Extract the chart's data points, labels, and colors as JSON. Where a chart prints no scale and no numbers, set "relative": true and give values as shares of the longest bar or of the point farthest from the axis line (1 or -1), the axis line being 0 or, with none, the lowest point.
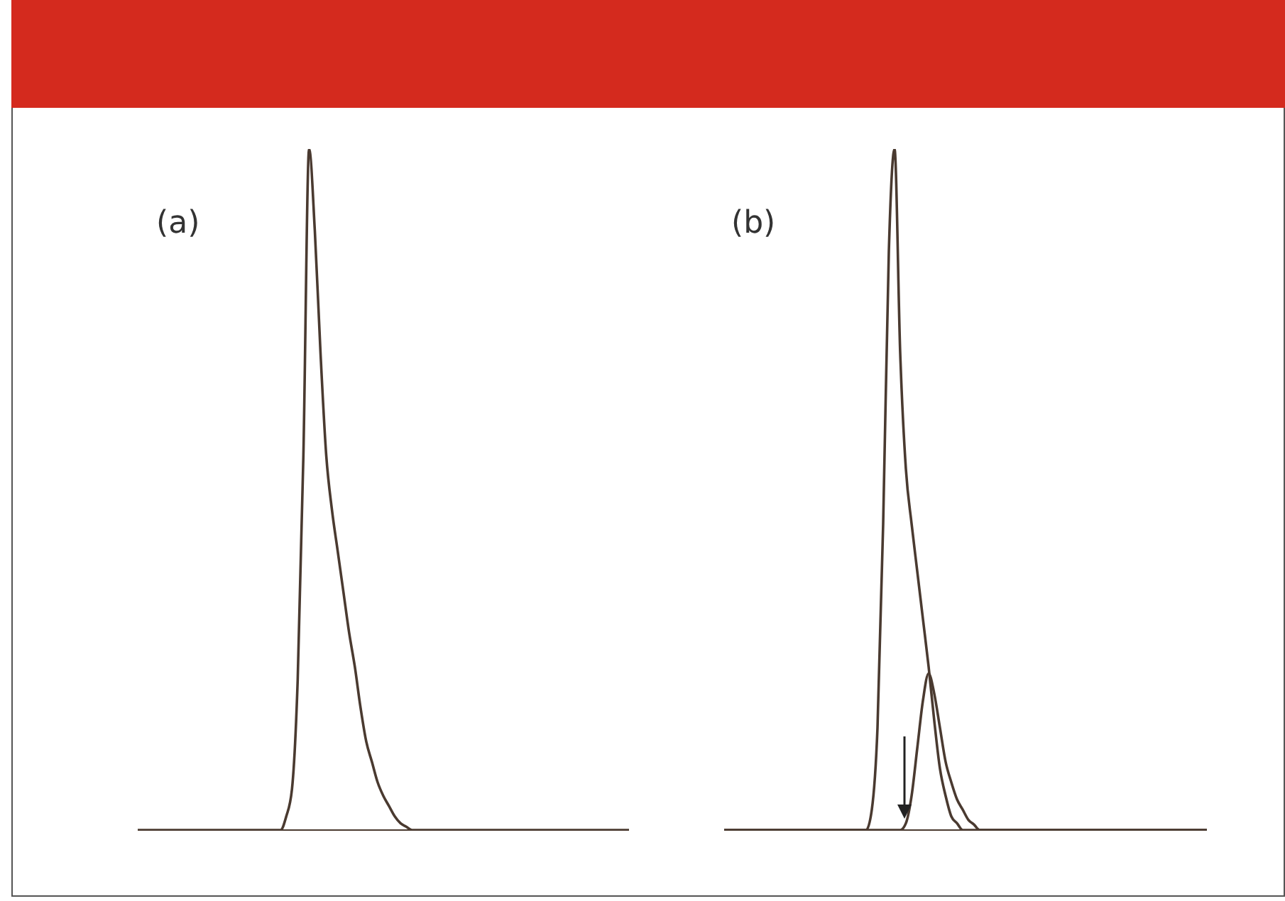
{
  "chart_data": [
    {
      "type": "line",
      "title": "(a)",
      "relative": true,
      "categories": [
        null,
        null,
        null,
        null,
        null,
        null,
        null,
        null,
        null,
        null,
        null,
        null,
        null,
        null,
        null,
        null,
        null,
        null,
        null,
        null,
        null,
        null,
        null,
        null,
        null,
        null,
        null,
        null,
        null,
        null,
        null,
        null,
        null,
        null,
        null,
        null,
        null,
        null,
        null,
        null,
        null,
        null,
        null,
        null,
        null,
        null,
        null,
        null,
        null,
        null,
        null,
        null,
        null,
        null,
        null,
        null,
        null,
        null,
        null,
        null,
        null,
        null,
        null,
        null,
        null,
        null,
        null,
        null,
        null,
        null,
        null,
        null,
        null,
        null,
        null,
        null,
        null,
        null,
        null,
        null,
        null,
        null,
        null,
        null,
        null,
        null,
        null
      ],
      "series": [
        {
          "color": "#4a3a30",
          "values": [
            0,
            0,
            0,
            0,
            0,
            0,
            0,
            0,
            0,
            0,
            0,
            0,
            0,
            0,
            0,
            0,
            0,
            0,
            0,
            0,
            0,
            0,
            0,
            0,
            0,
            0,
            0.02,
            0.06,
            0.22,
            0.55,
            1,
            0.88,
            0.7,
            0.55,
            0.47,
            0.41,
            0.35,
            0.29,
            0.24,
            0.18,
            0.13,
            0.1,
            0.07,
            0.05,
            0.035,
            0.02,
            0.01,
            0.005,
            0,
            0,
            0,
            0,
            0,
            0,
            0,
            0,
            0,
            0,
            0,
            0,
            0,
            0,
            0,
            0,
            0,
            0,
            0,
            0,
            0,
            0,
            0,
            0,
            0,
            0,
            0,
            0,
            0,
            0,
            0,
            0,
            0,
            0,
            0,
            0,
            0,
            0,
            0
          ]
        }
      ]
    },
    {
      "type": "line",
      "title": "(b)",
      "relative": true,
      "categories": [
        null,
        null,
        null,
        null,
        null,
        null,
        null,
        null,
        null,
        null,
        null,
        null,
        null,
        null,
        null,
        null,
        null,
        null,
        null,
        null,
        null,
        null,
        null,
        null,
        null,
        null,
        null,
        null,
        null,
        null,
        null,
        null,
        null,
        null,
        null,
        null,
        null,
        null,
        null,
        null,
        null,
        null,
        null,
        null,
        null,
        null,
        null,
        null,
        null,
        null,
        null,
        null,
        null,
        null,
        null,
        null,
        null,
        null,
        null,
        null,
        null,
        null,
        null,
        null,
        null,
        null,
        null,
        null,
        null,
        null,
        null,
        null,
        null,
        null,
        null,
        null,
        null,
        null,
        null,
        null,
        null,
        null,
        null,
        null,
        null,
        null
      ],
      "series": [
        {
          "color": "#4a3a30",
          "values": [
            0,
            0,
            0,
            0,
            0,
            0,
            0,
            0,
            0,
            0,
            0,
            0,
            0,
            0,
            0,
            0,
            0,
            0,
            0,
            0,
            0,
            0,
            0,
            0,
            0,
            0,
            0.03,
            0.15,
            0.45,
            0.85,
            1,
            0.7,
            0.53,
            0.45,
            0.38,
            0.31,
            0.24,
            0.16,
            0.09,
            0.05,
            0.02,
            0.01,
            0,
            0,
            0,
            0,
            0,
            0,
            0,
            0,
            0,
            0,
            0,
            0,
            0,
            0,
            0,
            0,
            0,
            0,
            0,
            0,
            0,
            0,
            0,
            0,
            0,
            0,
            0,
            0,
            0,
            0,
            0,
            0,
            0,
            0,
            0,
            0,
            0,
            0,
            0,
            0,
            0,
            0,
            0,
            0
          ]
        },
        {
          "color": "#4a3a30",
          "values": [
            0,
            0,
            0,
            0,
            0,
            0,
            0,
            0,
            0,
            0,
            0,
            0,
            0,
            0,
            0,
            0,
            0,
            0,
            0,
            0,
            0,
            0,
            0,
            0,
            0,
            0,
            0,
            0,
            0,
            0,
            0,
            0,
            0.01,
            0.05,
            0.12,
            0.19,
            0.23,
            0.2,
            0.15,
            0.1,
            0.07,
            0.045,
            0.03,
            0.015,
            0.008,
            0,
            0,
            0,
            0,
            0,
            0,
            0,
            0,
            0,
            0,
            0,
            0,
            0,
            0,
            0,
            0,
            0,
            0,
            0,
            0,
            0,
            0,
            0,
            0,
            0,
            0,
            0,
            0,
            0,
            0,
            0,
            0,
            0,
            0,
            0,
            0,
            0,
            0,
            0,
            0,
            0
          ]
        }
      ]
    }
  ]
}
